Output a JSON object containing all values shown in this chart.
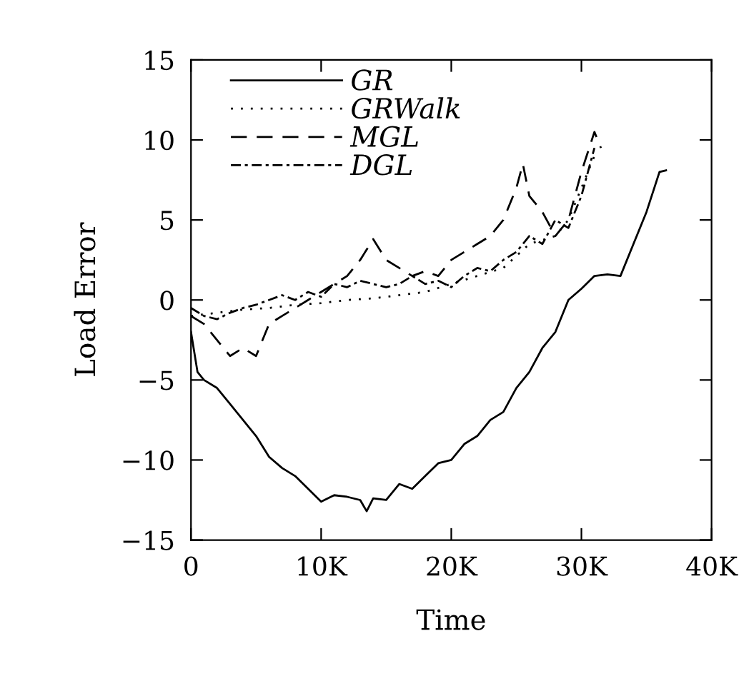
{
  "chart_data": {
    "type": "line",
    "xlabel": "Time",
    "ylabel": "Load Error",
    "xlim": [
      0,
      40000
    ],
    "xticks": [
      0,
      {
        "value": 10000,
        "label": "10K"
      },
      {
        "value": 20000,
        "label": "20K"
      },
      {
        "value": 30000,
        "label": "30K"
      },
      {
        "value": 40000,
        "label": "40K"
      }
    ],
    "ylim": [
      -15,
      15
    ],
    "yticks": [
      -15,
      -10,
      -5,
      0,
      5,
      10,
      15
    ],
    "grid": false,
    "legend": "top left",
    "series": [
      {
        "name": "GR",
        "color": "#000000",
        "line_style": "solid",
        "x": [
          0,
          500,
          1000,
          2000,
          3000,
          4000,
          5000,
          6000,
          7000,
          8000,
          9000,
          10000,
          11000,
          12000,
          13000,
          13500,
          14000,
          15000,
          16000,
          17000,
          18000,
          19000,
          20000,
          21000,
          22000,
          23000,
          24000,
          25000,
          26000,
          27000,
          28000,
          29000,
          30000,
          31000,
          32000,
          33000,
          34000,
          35000,
          36000,
          36500
        ],
        "values": [
          -2,
          -4.5,
          -5,
          -5.5,
          -6.5,
          -7.5,
          -8.5,
          -9.8,
          -10.5,
          -11,
          -11.8,
          -12.6,
          -12.2,
          -12.3,
          -12.5,
          -13.2,
          -12.4,
          -12.5,
          -11.5,
          -11.8,
          -11,
          -10.2,
          -10,
          -9,
          -8.5,
          -7.5,
          -7,
          -5.5,
          -4.5,
          -3,
          -2,
          0,
          0.7,
          1.5,
          1.6,
          1.5,
          3.5,
          5.5,
          8,
          8.1
        ]
      },
      {
        "name": "GRWalk",
        "color": "#000000",
        "line_style": "dotted",
        "x": [
          0,
          2000,
          4000,
          6000,
          8000,
          10000,
          12000,
          14000,
          16000,
          18000,
          20000,
          22000,
          24000,
          26000,
          28000,
          29000,
          30000,
          31000
        ],
        "values": [
          -1,
          -0.8,
          -0.6,
          -0.5,
          -0.3,
          -0.2,
          0,
          0.1,
          0.3,
          0.5,
          1,
          1.5,
          2,
          3.5,
          4,
          5,
          7,
          9
        ]
      },
      {
        "name": "MGL",
        "color": "#000000",
        "line_style": "dashed",
        "x": [
          0,
          1000,
          2000,
          3000,
          4000,
          5000,
          6000,
          7000,
          8000,
          9000,
          10000,
          11000,
          12000,
          13000,
          14000,
          15000,
          16000,
          17000,
          18000,
          19000,
          20000,
          21000,
          22000,
          23000,
          24000,
          25000,
          25500,
          26000,
          27000,
          28000,
          29000,
          30000,
          31000,
          31500
        ],
        "values": [
          -1,
          -1.5,
          -2.5,
          -3.5,
          -3,
          -3.5,
          -1.5,
          -1,
          -0.5,
          0,
          0.5,
          1,
          1.5,
          2.5,
          3.8,
          2.5,
          2,
          1.5,
          1.8,
          1.5,
          2.5,
          3,
          3.5,
          4,
          5,
          7,
          8.5,
          6.5,
          5.5,
          4,
          5,
          8,
          10.5,
          9.5
        ]
      },
      {
        "name": "DGL",
        "color": "#000000",
        "line_style": "dashdot",
        "x": [
          0,
          1000,
          2000,
          3000,
          4000,
          5000,
          6000,
          7000,
          8000,
          9000,
          10000,
          11000,
          12000,
          13000,
          14000,
          15000,
          16000,
          17000,
          18000,
          19000,
          20000,
          21000,
          22000,
          23000,
          24000,
          25000,
          26000,
          27000,
          28000,
          29000,
          30000,
          31000
        ],
        "values": [
          -0.5,
          -1,
          -1.2,
          -0.8,
          -0.5,
          -0.3,
          0,
          0.3,
          0,
          0.5,
          0.2,
          1,
          0.8,
          1.2,
          1,
          0.8,
          1,
          1.5,
          1,
          1.2,
          0.8,
          1.5,
          2,
          1.8,
          2.5,
          3,
          4,
          3.5,
          5,
          4.5,
          6.5,
          9.5
        ]
      }
    ]
  }
}
